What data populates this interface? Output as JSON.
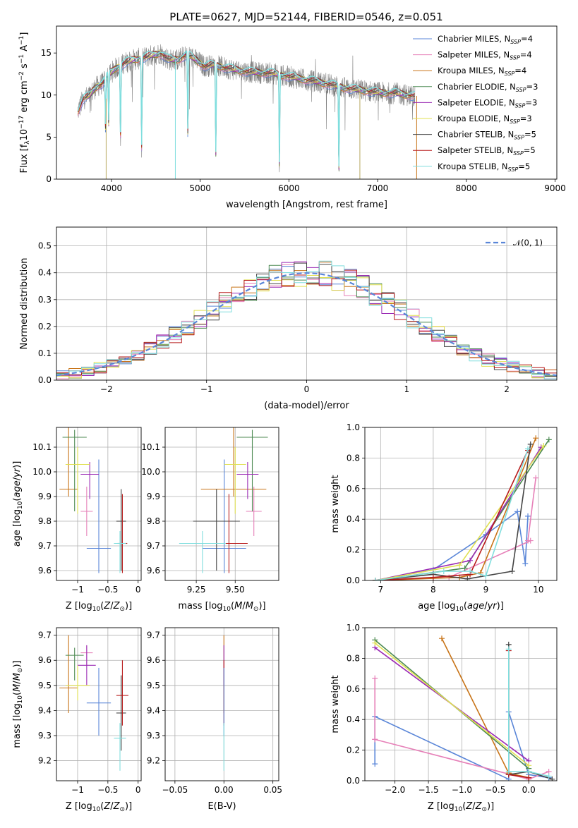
{
  "figure": {
    "title": "PLATE=0627, MJD=52144, FIBERID=0546, z=0.051"
  },
  "legend_entries": [
    {
      "name": "Chabrier MILES",
      "nssp": "4",
      "color": "#5a86d8"
    },
    {
      "name": "Salpeter MILES",
      "nssp": "4",
      "color": "#e680b8"
    },
    {
      "name": "Kroupa MILES",
      "nssp": "4",
      "color": "#c87418"
    },
    {
      "name": "Chabrier ELODIE",
      "nssp": "3",
      "color": "#4c8a52"
    },
    {
      "name": "Salpeter ELODIE",
      "nssp": "3",
      "color": "#9b2bb5"
    },
    {
      "name": "Kroupa ELODIE",
      "nssp": "3",
      "color": "#e0e050"
    },
    {
      "name": "Chabrier STELIB",
      "nssp": "5",
      "color": "#444444"
    },
    {
      "name": "Salpeter STELIB",
      "nssp": "5",
      "color": "#b81c1c"
    },
    {
      "name": "Kroupa STELIB",
      "nssp": "5",
      "color": "#80dede"
    }
  ],
  "chart_data": [
    {
      "type": "line",
      "panel": "spectrum",
      "xlabel": "wavelength [Angstrom, rest frame]",
      "ylabel": "Flux [f",
      "ylabel_parts": {
        "pre": "Flux [f",
        "sub": "λ",
        "mid": "10",
        "sup1": "−17",
        "mid2": " erg cm",
        "sup2": "−2",
        "mid3": " s",
        "sup3": "−1",
        "mid4": " A",
        "sup4": "−1",
        "post": "]"
      },
      "xlim": [
        3380,
        9020
      ],
      "ylim": [
        0,
        18.2
      ],
      "xticks": [
        4000,
        5000,
        6000,
        7000,
        8000,
        9000
      ],
      "yticks": [
        0,
        5,
        10,
        15
      ],
      "data_color": "#808080",
      "model_color": "#80dede",
      "spectrum_knots": {
        "x": [
          3620,
          3680,
          3750,
          3820,
          3900,
          3970,
          4050,
          4150,
          4250,
          4350,
          4450,
          4550,
          4650,
          4750,
          4850,
          4950,
          5050,
          5150,
          5300,
          5450,
          5600,
          5800,
          6000,
          6200,
          6400,
          6600,
          6800,
          7000,
          7200,
          7400
        ],
        "y": [
          8.0,
          9.5,
          9.9,
          10.9,
          11.4,
          12.4,
          13.2,
          13.8,
          14.2,
          14.4,
          14.7,
          15.0,
          14.2,
          14.2,
          14.8,
          14.2,
          13.4,
          13.6,
          13.2,
          12.9,
          12.7,
          12.6,
          12.2,
          11.8,
          11.4,
          10.9,
          10.6,
          10.3,
          10.2,
          9.9
        ]
      },
      "dips": [
        [
          3934,
          6.5
        ],
        [
          3969,
          6.0
        ],
        [
          4102,
          9.0
        ],
        [
          4340,
          10.5
        ],
        [
          4861,
          9.5
        ],
        [
          5176,
          10.5
        ],
        [
          5893,
          10.8
        ],
        [
          6563,
          10.0
        ]
      ],
      "spikes": [
        [
          6720,
          3.5
        ],
        [
          5577,
          1.5
        ],
        [
          6300,
          1.8
        ],
        [
          7250,
          1.5
        ]
      ],
      "drop_lines": [
        {
          "x": 3940,
          "color": "#b8a860"
        },
        {
          "x": 4720,
          "color": "#80dede"
        },
        {
          "x": 6800,
          "color": "#b8a860"
        },
        {
          "x": 7440,
          "color": "#c87418"
        }
      ]
    },
    {
      "type": "line",
      "panel": "residual-histogram",
      "xlabel": "(data-model)/error",
      "ylabel": "Normed distribution",
      "xlim": [
        -2.5,
        2.5
      ],
      "ylim": [
        0,
        0.57
      ],
      "xticks": [
        -2,
        -1,
        0,
        1,
        2
      ],
      "yticks": [
        0.0,
        0.1,
        0.2,
        0.3,
        0.4,
        0.5
      ],
      "bin_width": 0.125,
      "gaussian": {
        "name": "𝒩(0, 1)",
        "color": "#5a86d8"
      },
      "noise_amplitude": 0.045
    },
    {
      "type": "scatter",
      "panel": "age-vs-Z",
      "xlabel": "Z [log",
      "ylabel": "age  [log",
      "xlim": [
        -1.35,
        0.05
      ],
      "ylim": [
        9.56,
        10.18
      ],
      "xticks": [
        -1,
        -0.5,
        0
      ],
      "xtick_labels": [
        "−1",
        "−0.5",
        "0"
      ],
      "yticks": [
        9.6,
        9.7,
        9.8,
        9.9,
        10.0,
        10.1
      ],
      "points": [
        {
          "series": "Chabrier MILES",
          "x": -0.65,
          "y": 9.69,
          "xe": 0.2,
          "ye_lo": 0.1,
          "ye_hi": 0.36,
          "color": "#5a86d8"
        },
        {
          "series": "Salpeter MILES",
          "x": -0.85,
          "y": 9.84,
          "xe": 0.1,
          "ye_lo": 0.1,
          "ye_hi": 0.1,
          "color": "#e680b8"
        },
        {
          "series": "Kroupa MILES",
          "x": -1.15,
          "y": 9.93,
          "xe": 0.15,
          "ye_lo": 0.03,
          "ye_hi": 0.25,
          "color": "#c87418"
        },
        {
          "series": "Chabrier ELODIE",
          "x": -1.05,
          "y": 10.14,
          "xe": 0.2,
          "ye_lo": 0.3,
          "ye_hi": 0.03,
          "color": "#4c8a52"
        },
        {
          "series": "Salpeter ELODIE",
          "x": -0.8,
          "y": 9.99,
          "xe": 0.15,
          "ye_lo": 0.1,
          "ye_hi": 0.05,
          "color": "#9b2bb5"
        },
        {
          "series": "Kroupa ELODIE",
          "x": -1.0,
          "y": 10.03,
          "xe": 0.2,
          "ye_lo": 0.2,
          "ye_hi": 0.07,
          "color": "#e0e050"
        },
        {
          "series": "Chabrier STELIB",
          "x": -0.28,
          "y": 9.8,
          "xe": 0.08,
          "ye_lo": 0.2,
          "ye_hi": 0.13,
          "color": "#444444"
        },
        {
          "series": "Salpeter STELIB",
          "x": -0.26,
          "y": 9.71,
          "xe": 0.08,
          "ye_lo": 0.12,
          "ye_hi": 0.2,
          "color": "#b81c1c"
        },
        {
          "series": "Kroupa STELIB",
          "x": -0.3,
          "y": 9.71,
          "xe": 0.1,
          "ye_lo": 0.12,
          "ye_hi": 0.05,
          "color": "#80dede"
        }
      ]
    },
    {
      "type": "scatter",
      "panel": "age-vs-mass",
      "xlabel": "mass [log",
      "ylabel": "",
      "xlim": [
        9.05,
        9.78
      ],
      "ylim": [
        9.56,
        10.18
      ],
      "xticks": [
        9.25,
        9.5
      ],
      "yticks": [
        9.6,
        9.7,
        9.8,
        9.9,
        10.0,
        10.1
      ],
      "points": [
        {
          "series": "Chabrier MILES",
          "x": 9.43,
          "y": 9.69,
          "xe": 0.14,
          "ye_lo": 0.1,
          "ye_hi": 0.36,
          "color": "#5a86d8"
        },
        {
          "series": "Salpeter MILES",
          "x": 9.62,
          "y": 9.84,
          "xe": 0.05,
          "ye_lo": 0.1,
          "ye_hi": 0.1,
          "color": "#e680b8"
        },
        {
          "series": "Kroupa MILES",
          "x": 9.49,
          "y": 9.93,
          "xe": 0.21,
          "ye_lo": 0.03,
          "ye_hi": 0.25,
          "color": "#c87418"
        },
        {
          "series": "Chabrier ELODIE",
          "x": 9.61,
          "y": 10.14,
          "xe": 0.1,
          "ye_lo": 0.3,
          "ye_hi": 0.03,
          "color": "#4c8a52"
        },
        {
          "series": "Salpeter ELODIE",
          "x": 9.58,
          "y": 9.99,
          "xe": 0.07,
          "ye_lo": 0.1,
          "ye_hi": 0.05,
          "color": "#9b2bb5"
        },
        {
          "series": "Kroupa ELODIE",
          "x": 9.5,
          "y": 10.03,
          "xe": 0.07,
          "ye_lo": 0.2,
          "ye_hi": 0.07,
          "color": "#e0e050"
        },
        {
          "series": "Chabrier STELIB",
          "x": 9.38,
          "y": 9.8,
          "xe": 0.15,
          "ye_lo": 0.2,
          "ye_hi": 0.13,
          "color": "#444444"
        },
        {
          "series": "Salpeter STELIB",
          "x": 9.46,
          "y": 9.71,
          "xe": 0.12,
          "ye_lo": 0.12,
          "ye_hi": 0.2,
          "color": "#b81c1c"
        },
        {
          "series": "Kroupa STELIB",
          "x": 9.29,
          "y": 9.71,
          "xe": 0.15,
          "ye_lo": 0.12,
          "ye_hi": 0.05,
          "color": "#80dede"
        }
      ]
    },
    {
      "type": "line",
      "panel": "mass-weight-vs-age",
      "xlabel": "age  [log",
      "ylabel": "mass weight",
      "xlim": [
        6.7,
        10.35
      ],
      "ylim": [
        0,
        1.0
      ],
      "xticks": [
        7,
        8,
        9,
        10
      ],
      "yticks": [
        0.0,
        0.2,
        0.4,
        0.6,
        0.8,
        1.0
      ],
      "series": [
        {
          "name": "Chabrier MILES",
          "color": "#5a86d8",
          "x": [
            6.9,
            8.0,
            9.0,
            9.6,
            9.75,
            9.8
          ],
          "y": [
            0.0,
            0.07,
            0.3,
            0.45,
            0.11,
            0.42
          ]
        },
        {
          "name": "Salpeter MILES",
          "color": "#e680b8",
          "x": [
            6.9,
            8.3,
            9.85,
            9.8,
            9.95
          ],
          "y": [
            0.0,
            0.02,
            0.26,
            0.26,
            0.67
          ]
        },
        {
          "name": "Kroupa MILES",
          "color": "#c87418",
          "x": [
            6.9,
            8.5,
            8.9,
            9.95
          ],
          "y": [
            0.0,
            0.02,
            0.05,
            0.93
          ]
        },
        {
          "name": "Chabrier ELODIE",
          "color": "#4c8a52",
          "x": [
            6.9,
            8.6,
            10.2
          ],
          "y": [
            0.0,
            0.08,
            0.92
          ]
        },
        {
          "name": "Salpeter ELODIE",
          "color": "#9b2bb5",
          "x": [
            6.9,
            8.7,
            10.05
          ],
          "y": [
            0.0,
            0.13,
            0.87
          ]
        },
        {
          "name": "Kroupa ELODIE",
          "color": "#e0e050",
          "x": [
            6.9,
            8.5,
            10.1
          ],
          "y": [
            0.0,
            0.1,
            0.88
          ]
        },
        {
          "name": "Chabrier STELIB",
          "color": "#444444",
          "x": [
            6.9,
            8.0,
            8.65,
            9.5,
            9.85
          ],
          "y": [
            0.0,
            0.04,
            0.01,
            0.06,
            0.89
          ]
        },
        {
          "name": "Salpeter STELIB",
          "color": "#b81c1c",
          "x": [
            6.9,
            8.0,
            8.7,
            9.8
          ],
          "y": [
            0.0,
            0.02,
            0.04,
            0.85
          ]
        },
        {
          "name": "Kroupa STELIB",
          "color": "#80dede",
          "x": [
            6.9,
            8.2,
            8.7,
            9.0,
            9.8
          ],
          "y": [
            0.0,
            0.06,
            0.06,
            0.03,
            0.86
          ]
        }
      ]
    },
    {
      "type": "scatter",
      "panel": "mass-vs-Z",
      "xlabel": "Z [log",
      "ylabel": "mass [log",
      "xlim": [
        -1.35,
        0.05
      ],
      "ylim": [
        9.12,
        9.73
      ],
      "xticks": [
        -1,
        -0.5,
        0
      ],
      "xtick_labels": [
        "−1",
        "−0.5",
        "0"
      ],
      "yticks": [
        9.2,
        9.3,
        9.4,
        9.5,
        9.6,
        9.7
      ],
      "points": [
        {
          "series": "Chabrier MILES",
          "x": -0.65,
          "y": 9.43,
          "xe": 0.2,
          "ye_lo": 0.13,
          "ye_hi": 0.14,
          "color": "#5a86d8"
        },
        {
          "series": "Salpeter MILES",
          "x": -0.85,
          "y": 9.63,
          "xe": 0.1,
          "ye_lo": 0.05,
          "ye_hi": 0.03,
          "color": "#e680b8"
        },
        {
          "series": "Kroupa MILES",
          "x": -1.15,
          "y": 9.49,
          "xe": 0.15,
          "ye_lo": 0.1,
          "ye_hi": 0.21,
          "color": "#c87418"
        },
        {
          "series": "Chabrier ELODIE",
          "x": -1.05,
          "y": 9.62,
          "xe": 0.15,
          "ye_lo": 0.1,
          "ye_hi": 0.03,
          "color": "#4c8a52"
        },
        {
          "series": "Salpeter ELODIE",
          "x": -0.85,
          "y": 9.58,
          "xe": 0.15,
          "ye_lo": 0.08,
          "ye_hi": 0.08,
          "color": "#9b2bb5"
        },
        {
          "series": "Kroupa ELODIE",
          "x": -1.0,
          "y": 9.5,
          "xe": 0.2,
          "ye_lo": 0.06,
          "ye_hi": 0.08,
          "color": "#e0e050"
        },
        {
          "series": "Chabrier STELIB",
          "x": -0.28,
          "y": 9.39,
          "xe": 0.08,
          "ye_lo": 0.15,
          "ye_hi": 0.15,
          "color": "#444444"
        },
        {
          "series": "Salpeter STELIB",
          "x": -0.26,
          "y": 9.46,
          "xe": 0.1,
          "ye_lo": 0.12,
          "ye_hi": 0.14,
          "color": "#b81c1c"
        },
        {
          "series": "Kroupa STELIB",
          "x": -0.3,
          "y": 9.29,
          "xe": 0.1,
          "ye_lo": 0.13,
          "ye_hi": 0.06,
          "color": "#80dede"
        }
      ]
    },
    {
      "type": "scatter",
      "panel": "mass-vs-EBV",
      "xlabel": "E(B-V)",
      "ylabel": "",
      "xlim": [
        -0.06,
        0.056
      ],
      "ylim": [
        9.12,
        9.73
      ],
      "xticks": [
        -0.05,
        0.0,
        0.05
      ],
      "xtick_labels": [
        "−0.05",
        "0.00",
        "0.05"
      ],
      "yticks": [
        9.2,
        9.3,
        9.4,
        9.5,
        9.6,
        9.7
      ],
      "points": [
        {
          "series": "Kroupa MILES",
          "x": 0.0,
          "y": 9.49,
          "xe": 0.0,
          "ye_lo": 0.1,
          "ye_hi": 0.21,
          "color": "#c87418"
        },
        {
          "series": "Salpeter ELODIE",
          "x": 0.0,
          "y": 9.58,
          "xe": 0.0,
          "ye_lo": 0.08,
          "ye_hi": 0.08,
          "color": "#9b2bb5"
        },
        {
          "series": "Salpeter STELIB",
          "x": 0.0,
          "y": 9.46,
          "xe": 0.0,
          "ye_lo": 0.12,
          "ye_hi": 0.14,
          "color": "#b81c1c"
        },
        {
          "series": "Chabrier MILES",
          "x": 0.0,
          "y": 9.43,
          "xe": 0.0,
          "ye_lo": 0.13,
          "ye_hi": 0.14,
          "color": "#5a86d8"
        },
        {
          "series": "Kroupa STELIB",
          "x": 0.0,
          "y": 9.29,
          "xe": 0.0,
          "ye_lo": 0.13,
          "ye_hi": 0.06,
          "color": "#80dede"
        }
      ]
    },
    {
      "type": "line",
      "panel": "mass-weight-vs-Z",
      "xlabel": "Z [log",
      "ylabel": "mass weight",
      "xlim": [
        -2.45,
        0.42
      ],
      "ylim": [
        0,
        1.0
      ],
      "xticks": [
        -2.0,
        -1.5,
        -1.0,
        -0.5,
        0.0
      ],
      "xtick_labels": [
        "−2.0",
        "−1.5",
        "−1.0",
        "−0.5",
        "0.0"
      ],
      "yticks": [
        0.0,
        0.2,
        0.4,
        0.6,
        0.8,
        1.0
      ],
      "series": [
        {
          "name": "Chabrier MILES",
          "color": "#5a86d8",
          "x": [
            -2.3,
            -2.3,
            -0.3,
            -0.3,
            0.0,
            0.3
          ],
          "y": [
            0.11,
            0.42,
            0.01,
            0.45,
            0.04,
            0.02
          ]
        },
        {
          "name": "Salpeter MILES",
          "color": "#e680b8",
          "x": [
            -2.3,
            -2.3,
            -2.3,
            0.0,
            0.3
          ],
          "y": [
            0.67,
            0.27,
            0.27,
            0.01,
            0.06
          ]
        },
        {
          "name": "Kroupa MILES",
          "color": "#c87418",
          "x": [
            -1.3,
            -0.3,
            0.0
          ],
          "y": [
            0.93,
            0.05,
            0.02
          ]
        },
        {
          "name": "Chabrier ELODIE",
          "color": "#4c8a52",
          "x": [
            -2.3,
            0.0
          ],
          "y": [
            0.92,
            0.08
          ]
        },
        {
          "name": "Salpeter ELODIE",
          "color": "#9b2bb5",
          "x": [
            -2.3,
            0.0
          ],
          "y": [
            0.87,
            0.13
          ]
        },
        {
          "name": "Kroupa ELODIE",
          "color": "#e0e050",
          "x": [
            -2.3,
            0.0
          ],
          "y": [
            0.9,
            0.1
          ]
        },
        {
          "name": "Chabrier STELIB",
          "color": "#444444",
          "x": [
            -0.3,
            -0.3,
            0.0,
            0.35
          ],
          "y": [
            0.89,
            0.04,
            0.06,
            0.01
          ]
        },
        {
          "name": "Salpeter STELIB",
          "color": "#b81c1c",
          "x": [
            -0.3,
            -0.3,
            0.0
          ],
          "y": [
            0.85,
            0.04,
            0.02
          ]
        },
        {
          "name": "Kroupa STELIB",
          "color": "#80dede",
          "x": [
            -0.3,
            -0.3,
            0.0,
            0.3
          ],
          "y": [
            0.86,
            0.06,
            0.06,
            0.03
          ]
        }
      ]
    }
  ]
}
